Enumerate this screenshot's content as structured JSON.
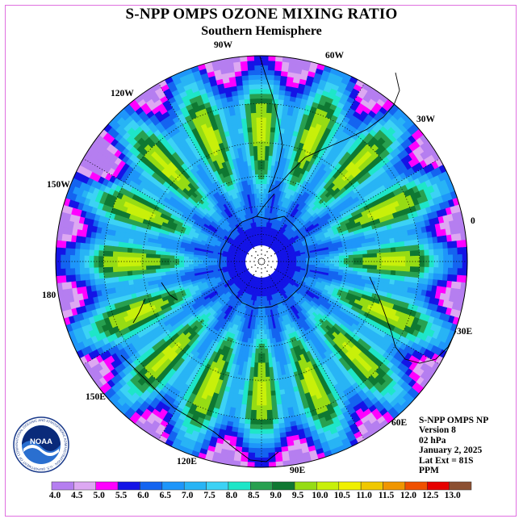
{
  "title": "S-NPP OMPS OZONE MIXING RATIO",
  "subtitle": "Southern Hemisphere",
  "longitude_labels": [
    {
      "id": "90w",
      "text": "90W"
    },
    {
      "id": "60w",
      "text": "60W"
    },
    {
      "id": "120w",
      "text": "120W"
    },
    {
      "id": "30w",
      "text": "30W"
    },
    {
      "id": "150w",
      "text": "150W"
    },
    {
      "id": "0",
      "text": "0"
    },
    {
      "id": "180",
      "text": "180"
    },
    {
      "id": "30e",
      "text": "30E"
    },
    {
      "id": "150e",
      "text": "150E"
    },
    {
      "id": "60e",
      "text": "60E"
    },
    {
      "id": "120e",
      "text": "120E"
    },
    {
      "id": "90e",
      "text": "90E"
    }
  ],
  "info": {
    "instrument": "S-NPP OMPS NP",
    "version": "Version 8",
    "level": "02 hPa",
    "date": "January 2, 2025",
    "lat_ext": "Lat Ext = 81S",
    "units": "PPM"
  },
  "logo": {
    "text": "NOAA",
    "ring_text": "NATIONAL OCEANIC AND ATMOSPHERIC ADMINISTRATION · U.S. DEPARTMENT OF COMMERCE"
  },
  "colorbar": {
    "ticks": [
      "4.0",
      "4.5",
      "5.0",
      "5.5",
      "6.0",
      "6.5",
      "7.0",
      "7.5",
      "8.0",
      "8.5",
      "9.0",
      "9.5",
      "10.0",
      "10.5",
      "11.0",
      "11.5",
      "12.0",
      "12.5",
      "13.0"
    ],
    "colors": [
      "#b57ef0",
      "#dda8f2",
      "#ff00ff",
      "#1414e6",
      "#1464f0",
      "#1e96fa",
      "#28b4f5",
      "#3cd2f5",
      "#1ee6c8",
      "#28a050",
      "#0f7832",
      "#96dc14",
      "#c8f00a",
      "#f0f000",
      "#f0c800",
      "#f09600",
      "#f05000",
      "#e60000",
      "#8c5032"
    ]
  },
  "chart_data": {
    "type": "heatmap",
    "projection": "south polar stereographic",
    "title": "S-NPP OMPS OZONE MIXING RATIO",
    "subtitle": "Southern Hemisphere",
    "variable": "ozone mixing ratio",
    "units": "PPM",
    "pressure_level": "02 hPa",
    "date": "January 2, 2025",
    "lat_extent": "81S",
    "scale_range": [
      4.0,
      13.0
    ],
    "scale_step": 0.5,
    "center_value_south_pole": 5.8,
    "polar_cap_no_data": true,
    "ring_values_by_latitude": [
      {
        "lat": -81,
        "value": 6.0
      },
      {
        "lat": -75,
        "value": 5.7
      },
      {
        "lat": -65,
        "value": 6.3
      },
      {
        "lat": -55,
        "value": 6.6
      },
      {
        "lat": -45,
        "value": 7.6
      },
      {
        "lat": -35,
        "value": 8.3
      },
      {
        "lat": -25,
        "value": 8.8
      },
      {
        "lat": -15,
        "value": 8.4
      },
      {
        "lat": -8,
        "value": 7.0
      },
      {
        "lat": 0,
        "value": 5.2
      }
    ],
    "zonal_wave_number": 16,
    "notable_extremes": [
      {
        "lon": "150W",
        "lat": -5,
        "value": 4.1
      },
      {
        "lon": "0",
        "lat": -5,
        "value": 5.0
      },
      {
        "lon": "180",
        "lat": -5,
        "value": 5.0
      },
      {
        "lon": "90E",
        "lat": -3,
        "value": 4.4
      },
      {
        "lon": "90W",
        "lat": -3,
        "value": 4.4
      }
    ]
  }
}
